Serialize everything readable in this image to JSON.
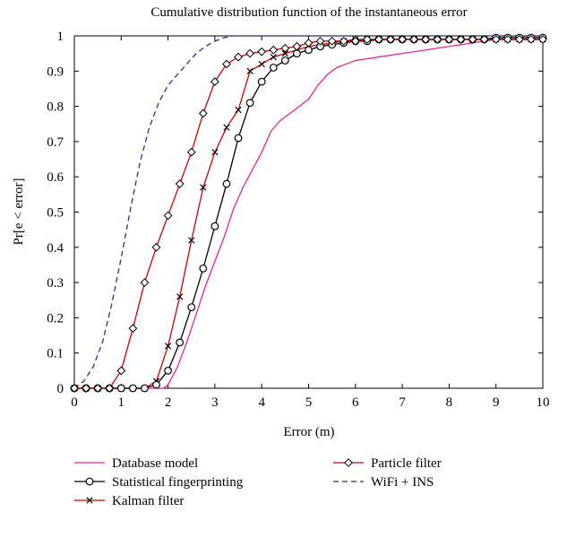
{
  "chart_data": {
    "type": "line",
    "title": "Cumulative distribution function of the instantaneous error",
    "xlabel": "Error (m)",
    "ylabel": "Pr[e < error]",
    "xlim": [
      0,
      10
    ],
    "ylim": [
      0,
      1
    ],
    "xticks": [
      "0",
      "1",
      "2",
      "3",
      "4",
      "5",
      "6",
      "7",
      "8",
      "9",
      "10"
    ],
    "yticks": [
      "0",
      "0.1",
      "0.2",
      "0.3",
      "0.4",
      "0.5",
      "0.6",
      "0.7",
      "0.8",
      "0.9",
      "1"
    ],
    "grid": false,
    "legend_position": "bottom",
    "series": [
      {
        "name": "Database model",
        "color": "#e0269a",
        "dash": "solid",
        "marker": "none",
        "x": [
          0,
          1.9,
          2.0,
          2.2,
          2.4,
          2.6,
          2.8,
          3.0,
          3.2,
          3.4,
          3.6,
          3.8,
          4.0,
          4.2,
          4.4,
          4.6,
          4.8,
          5.0,
          5.2,
          5.4,
          5.6,
          5.8,
          6.0,
          6.5,
          7.0,
          7.5,
          8.0,
          8.5,
          9.0,
          9.5,
          10.0
        ],
        "y": [
          0,
          0,
          0.01,
          0.06,
          0.13,
          0.21,
          0.29,
          0.36,
          0.43,
          0.51,
          0.57,
          0.62,
          0.67,
          0.73,
          0.76,
          0.78,
          0.8,
          0.82,
          0.86,
          0.89,
          0.91,
          0.92,
          0.93,
          0.94,
          0.95,
          0.96,
          0.97,
          0.98,
          0.99,
          0.99,
          0.99
        ]
      },
      {
        "name": "Statistical fingerprinting",
        "color": "#000000",
        "dash": "solid",
        "marker": "circle",
        "x": [
          0,
          0.25,
          0.5,
          0.75,
          1.0,
          1.25,
          1.5,
          1.75,
          2.0,
          2.25,
          2.5,
          2.75,
          3.0,
          3.25,
          3.5,
          3.75,
          4.0,
          4.25,
          4.5,
          4.75,
          5.0,
          5.25,
          5.5,
          5.75,
          6.0,
          6.25,
          6.5,
          6.75,
          7.0,
          7.25,
          7.5,
          7.75,
          8.0,
          8.25,
          8.5,
          8.75,
          9.0,
          9.25,
          9.5,
          9.75,
          10.0
        ],
        "y": [
          0,
          0,
          0,
          0,
          0,
          0,
          0,
          0.01,
          0.05,
          0.13,
          0.23,
          0.34,
          0.46,
          0.58,
          0.71,
          0.81,
          0.87,
          0.91,
          0.93,
          0.95,
          0.96,
          0.97,
          0.975,
          0.98,
          0.985,
          0.985,
          0.99,
          0.99,
          0.99,
          0.99,
          0.99,
          0.99,
          0.99,
          0.99,
          0.99,
          0.99,
          0.995,
          0.995,
          0.995,
          0.995,
          0.995
        ]
      },
      {
        "name": "Kalman filter",
        "color": "#cc0000",
        "dash": "solid",
        "marker": "x",
        "x": [
          0,
          0.25,
          0.5,
          0.75,
          1.0,
          1.25,
          1.5,
          1.75,
          2.0,
          2.25,
          2.5,
          2.75,
          3.0,
          3.25,
          3.5,
          3.75,
          4.0,
          4.25,
          4.5,
          4.75,
          5.0,
          5.25,
          5.5,
          5.75,
          6.0,
          6.25,
          6.5,
          6.75,
          7.0,
          7.25,
          7.5,
          7.75,
          8.0,
          8.25,
          8.5,
          8.75,
          9.0,
          9.25,
          9.5,
          9.75,
          10.0
        ],
        "y": [
          0,
          0,
          0,
          0,
          0,
          0,
          0,
          0.02,
          0.12,
          0.26,
          0.42,
          0.57,
          0.67,
          0.74,
          0.79,
          0.9,
          0.92,
          0.94,
          0.95,
          0.96,
          0.97,
          0.975,
          0.98,
          0.985,
          0.99,
          0.99,
          0.99,
          0.99,
          0.99,
          0.99,
          0.99,
          0.99,
          0.99,
          0.99,
          0.99,
          0.99,
          0.99,
          0.99,
          0.99,
          0.99,
          0.99
        ]
      },
      {
        "name": "Particle filter",
        "color": "#cc0000",
        "dash": "solid",
        "marker": "diamond",
        "x": [
          0,
          0.25,
          0.5,
          0.75,
          1.0,
          1.25,
          1.5,
          1.75,
          2.0,
          2.25,
          2.5,
          2.75,
          3.0,
          3.25,
          3.5,
          3.75,
          4.0,
          4.25,
          4.5,
          4.75,
          5.0,
          5.25,
          5.5,
          5.75,
          6.0,
          6.25,
          6.5,
          6.75,
          7.0,
          7.25,
          7.5,
          7.75,
          8.0,
          8.25,
          8.5,
          8.75,
          9.0,
          9.25,
          9.5,
          9.75,
          10.0
        ],
        "y": [
          0,
          0,
          0,
          0,
          0.05,
          0.17,
          0.3,
          0.4,
          0.49,
          0.58,
          0.67,
          0.78,
          0.87,
          0.92,
          0.94,
          0.95,
          0.955,
          0.96,
          0.965,
          0.97,
          0.98,
          0.985,
          0.985,
          0.985,
          0.985,
          0.99,
          0.99,
          0.99,
          0.99,
          0.99,
          0.99,
          0.99,
          0.99,
          0.99,
          0.99,
          0.99,
          0.99,
          0.99,
          0.99,
          0.99,
          0.99
        ]
      },
      {
        "name": "WiFi + INS",
        "color": "#2b2e8c",
        "dash": "dashed",
        "marker": "none",
        "x": [
          0,
          0.2,
          0.4,
          0.6,
          0.8,
          1.0,
          1.2,
          1.4,
          1.6,
          1.8,
          2.0,
          2.2,
          2.4,
          2.6,
          2.8,
          3.0,
          3.2,
          3.4,
          3.6,
          4.0,
          5.0,
          6.0,
          8.0,
          10.0
        ],
        "y": [
          0,
          0.02,
          0.06,
          0.13,
          0.24,
          0.37,
          0.51,
          0.64,
          0.74,
          0.81,
          0.86,
          0.89,
          0.92,
          0.95,
          0.97,
          0.985,
          0.995,
          1.0,
          1.0,
          1.0,
          1.0,
          1.0,
          1.0,
          1.0
        ]
      }
    ]
  }
}
